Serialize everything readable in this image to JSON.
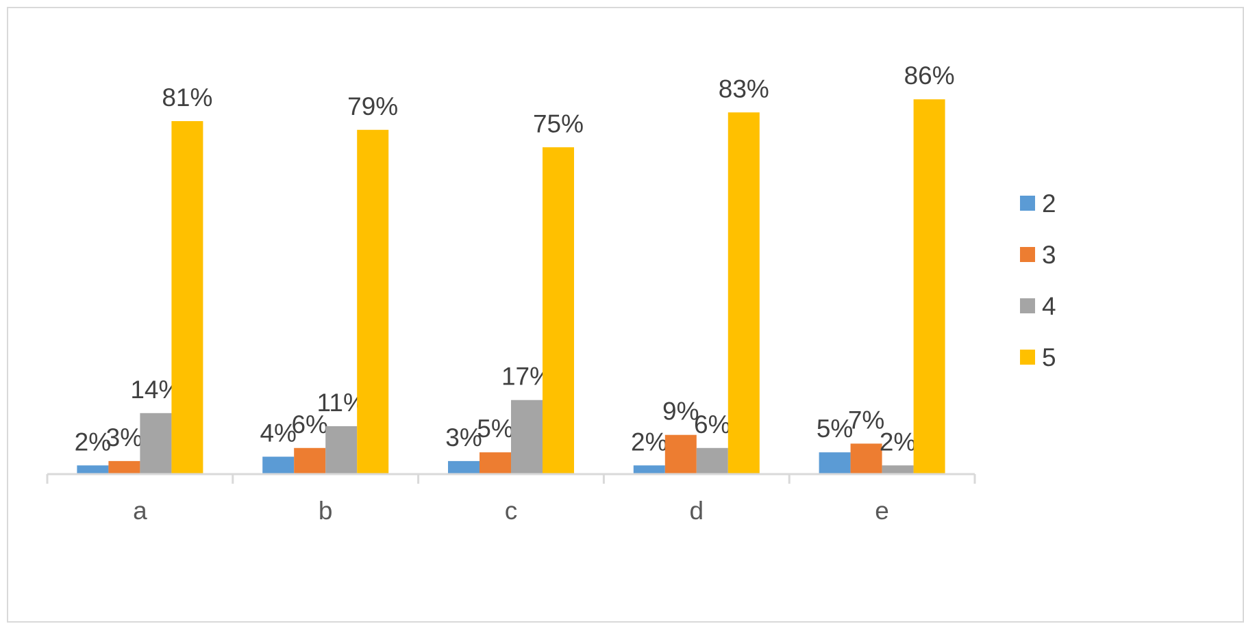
{
  "chart_data": {
    "type": "bar",
    "categories": [
      "a",
      "b",
      "c",
      "d",
      "e"
    ],
    "series": [
      {
        "name": "2",
        "color": "#5b9bd5",
        "values": [
          2,
          4,
          3,
          2,
          5
        ],
        "labels": [
          "2%",
          "4%",
          "3%",
          "2%",
          "5%"
        ]
      },
      {
        "name": "3",
        "color": "#ed7d31",
        "values": [
          3,
          6,
          5,
          9,
          7
        ],
        "labels": [
          "3%",
          "6%",
          "5%",
          "9%",
          "7%"
        ]
      },
      {
        "name": "4",
        "color": "#a5a5a5",
        "values": [
          14,
          11,
          17,
          6,
          2
        ],
        "labels": [
          "14%",
          "11%",
          "17%",
          "6%",
          "2%"
        ]
      },
      {
        "name": "5",
        "color": "#ffc000",
        "values": [
          81,
          79,
          75,
          83,
          86
        ],
        "labels": [
          "81%",
          "79%",
          "75%",
          "83%",
          "86%"
        ]
      }
    ],
    "value_unit": "%",
    "ylim": [
      0,
      100
    ],
    "grid": false,
    "y_axis_visible": false,
    "legend_position": "right",
    "title": "",
    "xlabel": "",
    "ylabel": ""
  }
}
